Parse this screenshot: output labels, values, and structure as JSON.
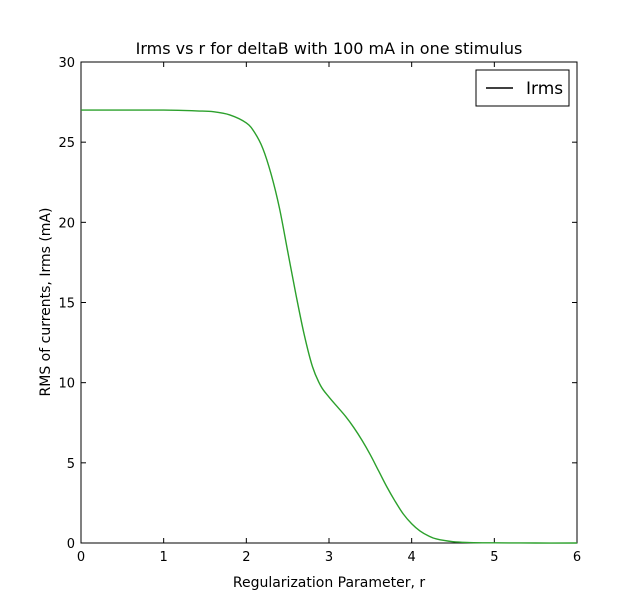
{
  "chart_data": {
    "type": "line",
    "title": "Irms vs r for deltaB with 100 mA in one stimulus",
    "xlabel": "Regularization Parameter, r",
    "ylabel": "RMS of currents, Irms (mA)",
    "xlim": [
      0,
      6
    ],
    "ylim": [
      0,
      30
    ],
    "x_ticks": [
      0,
      1,
      2,
      3,
      4,
      5,
      6
    ],
    "y_ticks": [
      0,
      5,
      10,
      15,
      20,
      25,
      30
    ],
    "x_tick_labels": [
      "0",
      "1",
      "2",
      "3",
      "4",
      "5",
      "6"
    ],
    "y_tick_labels": [
      "0",
      "5",
      "10",
      "15",
      "20",
      "25",
      "30"
    ],
    "grid": false,
    "legend": {
      "placement": "top-right",
      "entries": [
        {
          "label": "Irms",
          "swatch_color": "#000000"
        }
      ]
    },
    "series": [
      {
        "name": "Irms",
        "color": "#2ca02c",
        "x": [
          0,
          0.5,
          1.0,
          1.4,
          1.6,
          1.8,
          2.0,
          2.1,
          2.2,
          2.3,
          2.4,
          2.5,
          2.6,
          2.7,
          2.8,
          2.9,
          3.0,
          3.1,
          3.2,
          3.3,
          3.4,
          3.5,
          3.6,
          3.7,
          3.8,
          3.9,
          4.0,
          4.1,
          4.2,
          4.3,
          4.5,
          4.7,
          5.0,
          5.5,
          6.0
        ],
        "y": [
          27.0,
          27.0,
          27.0,
          26.95,
          26.9,
          26.7,
          26.2,
          25.6,
          24.6,
          23.0,
          20.9,
          18.2,
          15.5,
          13.0,
          11.0,
          9.8,
          9.1,
          8.5,
          7.9,
          7.2,
          6.4,
          5.5,
          4.5,
          3.5,
          2.6,
          1.8,
          1.2,
          0.75,
          0.45,
          0.25,
          0.08,
          0.03,
          0.01,
          0.0,
          0.0
        ]
      }
    ]
  }
}
